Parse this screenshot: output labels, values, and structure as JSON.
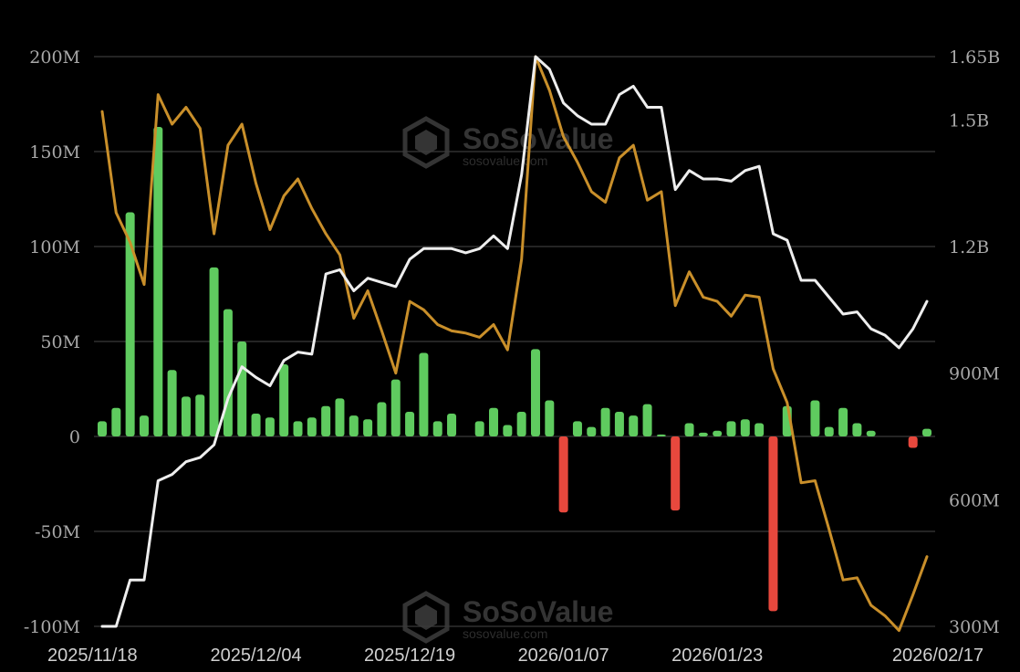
{
  "watermark": {
    "brand": "SoSoValue",
    "site": "sosovalue.com"
  },
  "colors": {
    "background": "#000000",
    "grid": "#3a3a3a",
    "positive_bar": "#5fcb5f",
    "negative_bar": "#e8483d",
    "line_white": "#eeeeee",
    "line_gold": "#c98f2a"
  },
  "chart_data": {
    "type": "bar",
    "left_axis": {
      "ylim": [
        -100,
        200
      ],
      "ticks": [
        -100,
        -50,
        0,
        50,
        100,
        150,
        200
      ],
      "tick_labels": [
        "-100M",
        "-50M",
        "0",
        "50M",
        "100M",
        "150M",
        "200M"
      ]
    },
    "right_axis": {
      "ylim": [
        300,
        1650
      ],
      "ticks": [
        300,
        600,
        900,
        1200,
        1500,
        1650
      ],
      "tick_labels": [
        "300M",
        "600M",
        "900M",
        "1.2B",
        "1.5B",
        "1.65B"
      ]
    },
    "x_tick_labels": [
      {
        "index": 0,
        "label": "2025/11/18"
      },
      {
        "index": 11,
        "label": "2025/12/04"
      },
      {
        "index": 22,
        "label": "2025/12/19"
      },
      {
        "index": 33,
        "label": "2026/01/07"
      },
      {
        "index": 44,
        "label": "2026/01/23"
      },
      {
        "index": 59,
        "label": "2026/02/17"
      }
    ],
    "grid": true,
    "legend": "none",
    "bar_values": [
      8,
      15,
      118,
      11,
      163,
      35,
      21,
      22,
      89,
      67,
      50,
      12,
      10,
      38,
      8,
      10,
      16,
      20,
      11,
      9,
      18,
      30,
      13,
      44,
      8,
      12,
      null,
      8,
      15,
      6,
      13,
      46,
      19,
      -40,
      8,
      5,
      15,
      13,
      11,
      17,
      1,
      -39,
      7,
      2,
      3,
      8,
      9,
      7,
      -92,
      16,
      null,
      19,
      5,
      15,
      7,
      3,
      null,
      null,
      -6,
      4
    ],
    "white_line": [
      300,
      300,
      410,
      410,
      645,
      660,
      690,
      700,
      730,
      840,
      915,
      890,
      870,
      930,
      950,
      945,
      1135,
      1145,
      1095,
      1125,
      1115,
      1105,
      1170,
      1195,
      1195,
      1195,
      1185,
      1195,
      1225,
      1195,
      1370,
      1650,
      1620,
      1540,
      1510,
      1490,
      1490,
      1560,
      1580,
      1530,
      1530,
      1335,
      1380,
      1360,
      1360,
      1355,
      1380,
      1390,
      1230,
      1215,
      1120,
      1120,
      1080,
      1040,
      1045,
      1005,
      990,
      960,
      1005,
      1070
    ],
    "gold_line": [
      1520,
      1280,
      1210,
      1110,
      1560,
      1490,
      1530,
      1480,
      1230,
      1440,
      1490,
      1350,
      1240,
      1320,
      1360,
      1290,
      1230,
      1180,
      1030,
      1095,
      1000,
      900,
      1070,
      1050,
      1015,
      1000,
      995,
      985,
      1015,
      955,
      1170,
      1650,
      1570,
      1460,
      1400,
      1330,
      1305,
      1410,
      1440,
      1310,
      1330,
      1060,
      1140,
      1080,
      1070,
      1035,
      1085,
      1080,
      910,
      830,
      640,
      645,
      530,
      410,
      415,
      350,
      325,
      290,
      375,
      465
    ]
  }
}
